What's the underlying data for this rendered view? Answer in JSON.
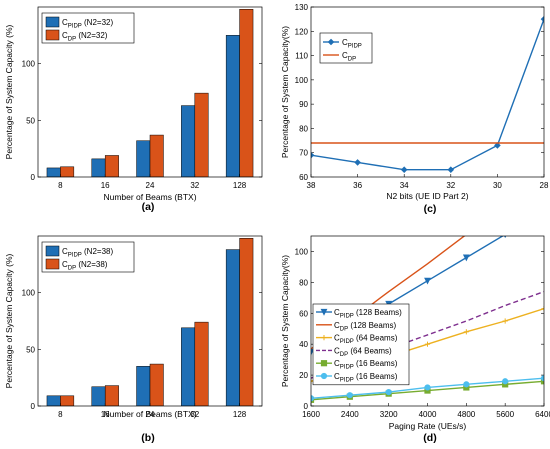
{
  "chart_data": [
    {
      "type": "bar",
      "panel_label": "(a)",
      "categories": [
        "8",
        "16",
        "24",
        "32",
        "128"
      ],
      "series": [
        {
          "name": "C",
          "sub": "PIDP",
          "suffix": "(N2=32)",
          "values": [
            8,
            16,
            32,
            63,
            125
          ],
          "color": "#1f6fb5"
        },
        {
          "name": "C",
          "sub": "DP",
          "suffix": "(N2=32)",
          "values": [
            9,
            19,
            37,
            74,
            148
          ],
          "color": "#d95319"
        }
      ],
      "xlabel": "Number of Beams (BTX)",
      "ylabel": "Percentage of System Capacity (%)",
      "ylim": [
        0,
        150
      ],
      "yticks": [
        0,
        50,
        100
      ],
      "legend_position": "top-left",
      "grid": false
    },
    {
      "type": "line",
      "panel_label": "(c)",
      "x_categories": [
        "38",
        "36",
        "34",
        "32",
        "30",
        "28"
      ],
      "series": [
        {
          "name": "C",
          "sub": "PIDP",
          "values": [
            69,
            66,
            63,
            63,
            73,
            125
          ],
          "color": "#1f6fb5",
          "marker": "diamond"
        },
        {
          "name": "C",
          "sub": "DP",
          "values": [
            74,
            74,
            74,
            74,
            74,
            74
          ],
          "color": "#d95319",
          "marker": "none"
        }
      ],
      "xlabel": "N2 bits (UE ID Part 2)",
      "ylabel": "Percentage of System Capacity(%)",
      "ylim": [
        60,
        130
      ],
      "yticks": [
        60,
        70,
        80,
        90,
        100,
        110,
        120,
        130
      ],
      "legend_position": "top-left",
      "grid": false
    },
    {
      "type": "bar",
      "panel_label": "(b)",
      "categories": [
        "8",
        "16",
        "24",
        "32",
        "128"
      ],
      "series": [
        {
          "name": "C",
          "sub": "PIDP",
          "suffix": "(N2=38)",
          "values": [
            9,
            17,
            35,
            69,
            138
          ],
          "color": "#1f6fb5"
        },
        {
          "name": "C",
          "sub": "DP",
          "suffix": "(N2=38)",
          "values": [
            9,
            18,
            37,
            74,
            148
          ],
          "color": "#d95319"
        }
      ],
      "xlabel": "Number of Beams (BTX)",
      "ylabel": "Percentage of System Capacity (%)",
      "ylim": [
        0,
        150
      ],
      "yticks": [
        0,
        50,
        100
      ],
      "legend_position": "top-left",
      "grid": false
    },
    {
      "type": "line",
      "panel_label": "(d)",
      "x": [
        1600,
        2400,
        3200,
        4000,
        4800,
        5600,
        6400
      ],
      "xticks": [
        1600,
        2400,
        3200,
        4000,
        4800,
        5600,
        6400
      ],
      "series": [
        {
          "name": "C",
          "sub": "PIDP",
          "suffix": "(128 Beams)",
          "x": [
            1600,
            2400,
            3200,
            4000,
            4800,
            5600
          ],
          "values": [
            35,
            51,
            66,
            81,
            96,
            111
          ],
          "color": "#1f6fb5",
          "marker": "triangle",
          "dash": false
        },
        {
          "name": "C",
          "sub": "DP",
          "suffix": "(128 Beams)",
          "x": [
            1600,
            2400,
            3200,
            4000,
            4800
          ],
          "values": [
            37,
            55,
            74,
            92,
            111
          ],
          "color": "#d95319",
          "marker": "none",
          "dash": false
        },
        {
          "name": "C",
          "sub": "PIDP",
          "suffix": "(64 Beams)",
          "x": [
            1600,
            2400,
            3200,
            4000,
            4800,
            5600,
            6400
          ],
          "values": [
            16,
            24,
            32,
            40,
            48,
            55,
            63
          ],
          "color": "#edb120",
          "marker": "plus",
          "dash": false
        },
        {
          "name": "C",
          "sub": "DP",
          "suffix": "(64 Beams)",
          "x": [
            1600,
            2400,
            3200,
            4000,
            4800,
            5600,
            6400
          ],
          "values": [
            18,
            28,
            37,
            46,
            55,
            65,
            74
          ],
          "color": "#7e2f8e",
          "marker": "none",
          "dash": true
        },
        {
          "name": "C",
          "sub": "PIDP",
          "suffix": "(16 Beams)",
          "x": [
            1600,
            2400,
            3200,
            4000,
            4800,
            5600,
            6400
          ],
          "values": [
            4,
            6,
            8,
            10,
            12,
            14,
            16
          ],
          "color": "#77ac30",
          "marker": "square",
          "dash": false
        },
        {
          "name": "C",
          "sub": "PIDP",
          "suffix": "(16 Beams)",
          "x": [
            1600,
            2400,
            3200,
            4000,
            4800,
            5600,
            6400
          ],
          "values": [
            5,
            7,
            9,
            12,
            14,
            16,
            18
          ],
          "color": "#4dbeee",
          "marker": "circle",
          "dash": false
        }
      ],
      "xlabel": "Paging Rate (UEs/s)",
      "ylabel": "Percentage of System Capacity(%)",
      "xlim": [
        1600,
        6400
      ],
      "ylim": [
        0,
        110
      ],
      "yticks": [
        0,
        20,
        40,
        60,
        80,
        100
      ],
      "legend_position": "bottom-left",
      "grid": false
    }
  ]
}
